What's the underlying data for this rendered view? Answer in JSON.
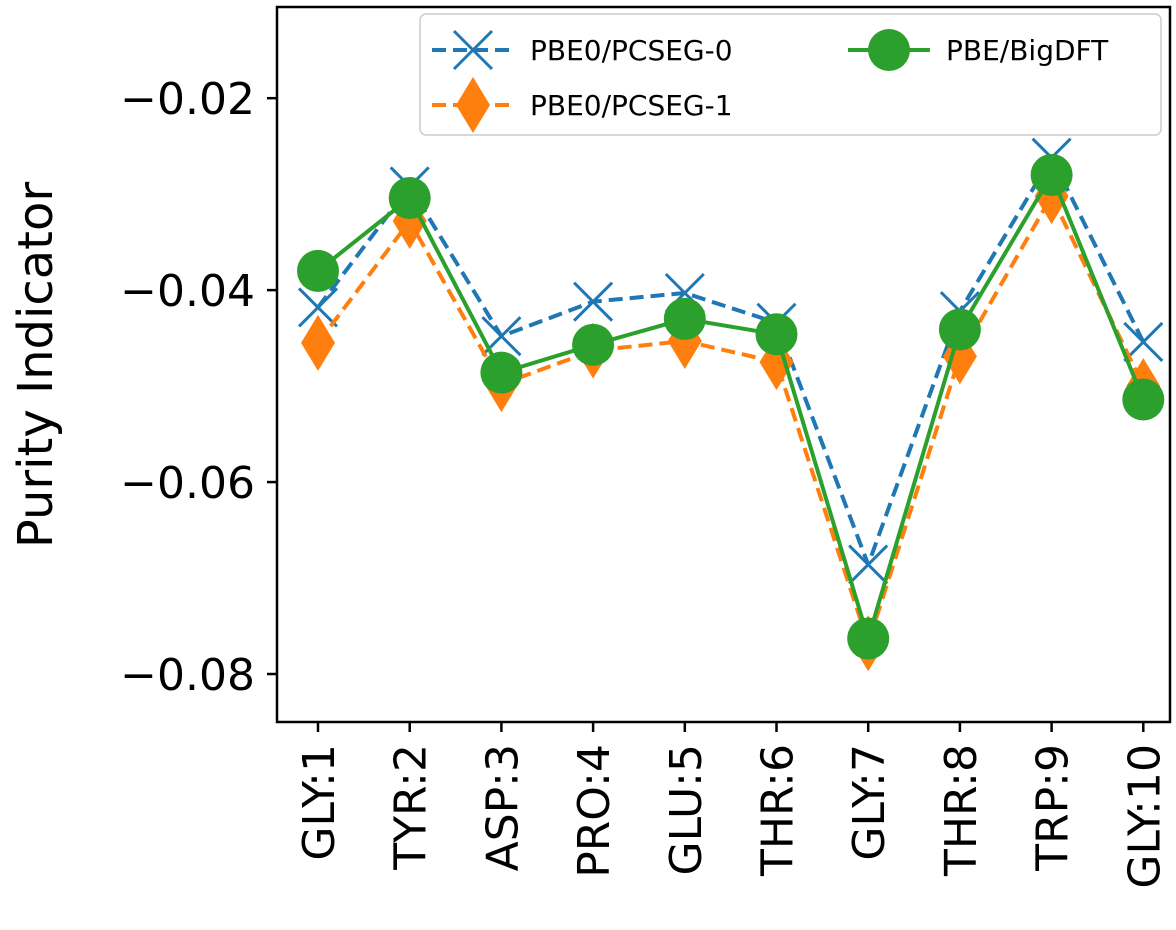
{
  "chart_data": {
    "type": "line",
    "title": "",
    "xlabel": "",
    "ylabel": "Purity Indicator",
    "categories": [
      "GLY:1",
      "TYR:2",
      "ASP:3",
      "PRO:4",
      "GLU:5",
      "THR:6",
      "GLY:7",
      "THR:8",
      "TRP:9",
      "GLY:10"
    ],
    "ylim": [
      -0.085,
      -0.0105
    ],
    "yticks": [
      -0.02,
      -0.04,
      -0.06,
      -0.08
    ],
    "ytick_labels": [
      "−0.02",
      "−0.04",
      "−0.06",
      "−0.08"
    ],
    "grid": false,
    "legend_position": "top-right",
    "legend_columns": 2,
    "series": [
      {
        "name": "PBE0/PCSEG-0",
        "color": "#1f77b4",
        "line_style": "dashed",
        "marker": "x",
        "values": [
          -0.0418,
          -0.0292,
          -0.0448,
          -0.0412,
          -0.0403,
          -0.0434,
          -0.0686,
          -0.0422,
          -0.0262,
          -0.0454
        ]
      },
      {
        "name": "PBE0/PCSEG-1",
        "color": "#ff7f0e",
        "line_style": "dashed",
        "marker": "diamond",
        "values": [
          -0.0455,
          -0.0328,
          -0.0498,
          -0.0463,
          -0.0453,
          -0.0475,
          -0.0768,
          -0.0469,
          -0.0302,
          -0.05
        ]
      },
      {
        "name": "PBE/BigDFT",
        "color": "#2ca02c",
        "line_style": "solid",
        "marker": "circle",
        "values": [
          -0.038,
          -0.0304,
          -0.0486,
          -0.0457,
          -0.043,
          -0.0446,
          -0.0763,
          -0.0441,
          -0.028,
          -0.0514
        ]
      }
    ]
  }
}
